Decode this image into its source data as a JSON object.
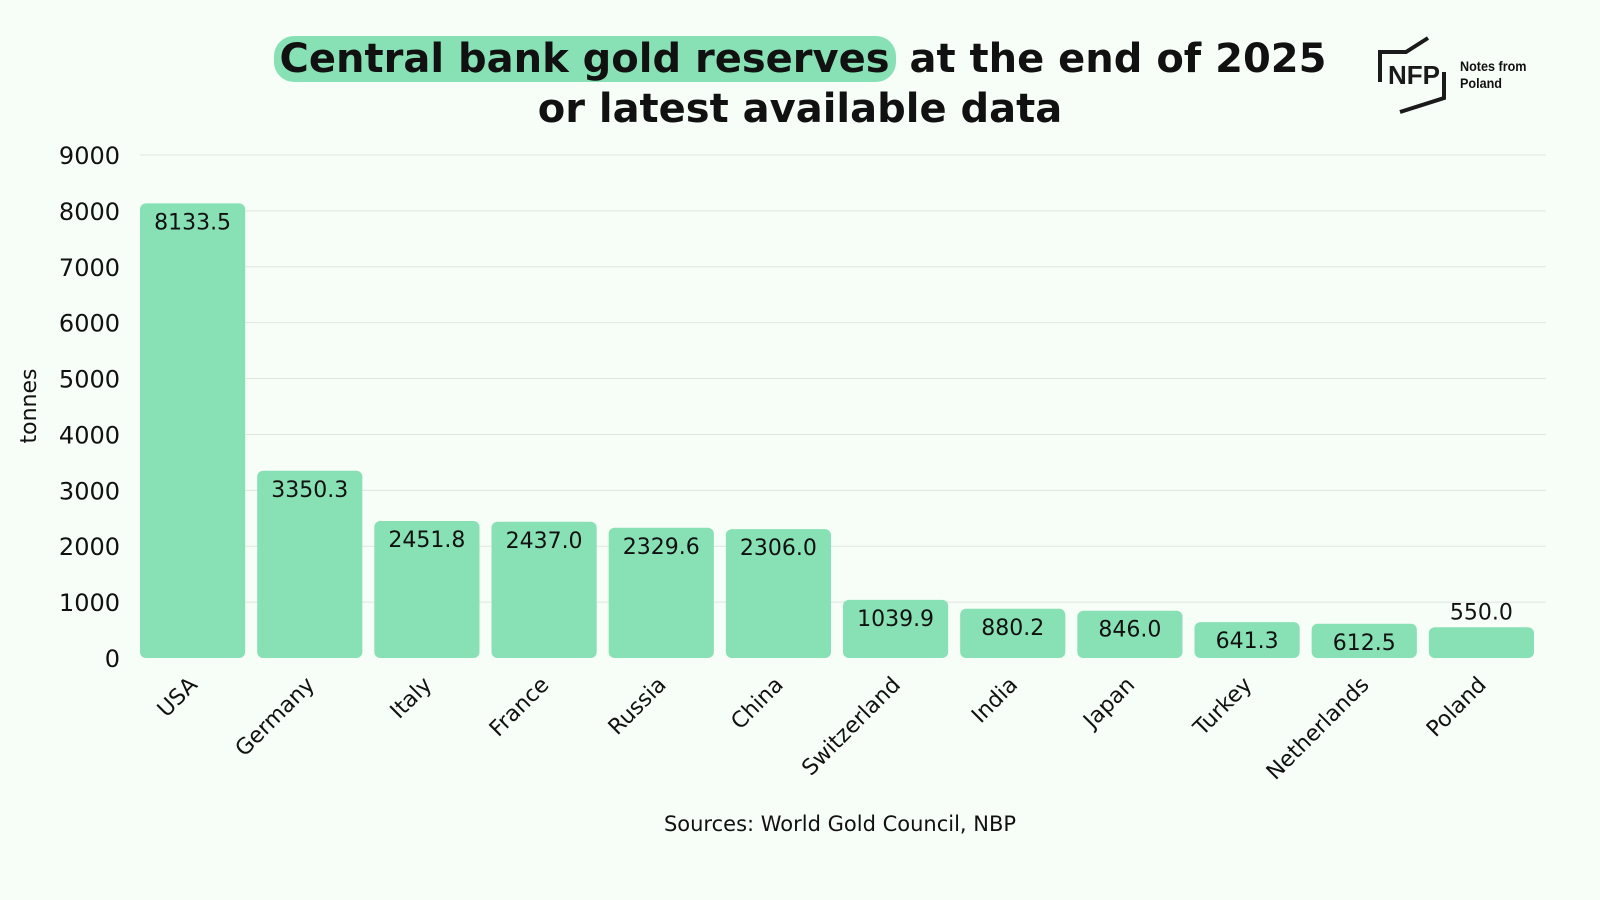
{
  "title": {
    "highlight": "Central bank gold reserves",
    "rest": " at the end of 2025",
    "line2": "or latest available data"
  },
  "logo": {
    "mark": "NFP",
    "text_line1": "Notes from",
    "text_line2": "Poland"
  },
  "source": "Sources: World Gold Council, NBP",
  "colors": {
    "bar": "#88e0b5",
    "background": "#f7fdf7",
    "grid": "#dfe5df"
  },
  "chart_data": {
    "type": "bar",
    "title": "Central bank gold reserves at the end of 2025 or latest available data",
    "xlabel": "",
    "ylabel": "tonnes",
    "ylim": [
      0,
      9000
    ],
    "yticks": [
      0,
      1000,
      2000,
      3000,
      4000,
      5000,
      6000,
      7000,
      8000,
      9000
    ],
    "grid": true,
    "categories": [
      "USA",
      "Germany",
      "Italy",
      "France",
      "Russia",
      "China",
      "Switzerland",
      "India",
      "Japan",
      "Turkey",
      "Netherlands",
      "Poland"
    ],
    "values": [
      8133.5,
      3350.3,
      2451.8,
      2437.0,
      2329.6,
      2306.0,
      1039.9,
      880.2,
      846.0,
      641.3,
      612.5,
      550.0
    ],
    "labels": [
      "8133.5",
      "3350.3",
      "2451.8",
      "2437.0",
      "2329.6",
      "2306.0",
      "1039.9",
      "880.2",
      "846.0",
      "641.3",
      "612.5",
      "550.0"
    ]
  }
}
